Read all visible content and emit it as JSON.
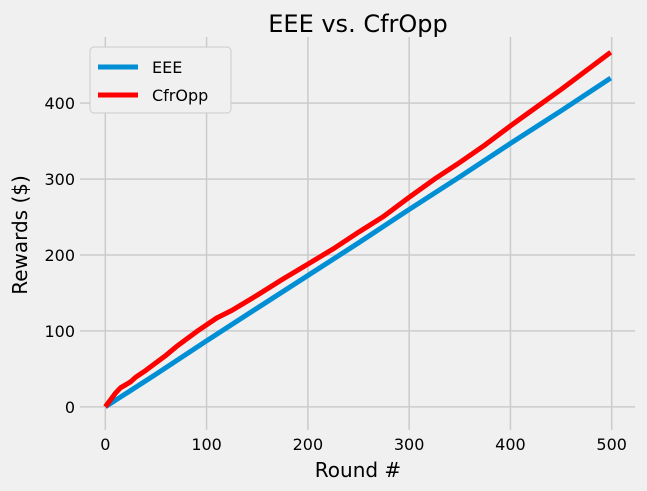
{
  "chart_data": {
    "type": "line",
    "title": "EEE vs. CfrOpp",
    "xlabel": "Round #",
    "ylabel": "Rewards ($)",
    "xlim": [
      -25,
      523
    ],
    "ylim": [
      -20,
      474
    ],
    "xticks": [
      0,
      100,
      200,
      300,
      400,
      500
    ],
    "yticks": [
      0,
      100,
      200,
      300,
      400
    ],
    "grid": true,
    "legend_position": "top-left",
    "series": [
      {
        "name": "EEE",
        "color": "#008fd5",
        "x": [
          0,
          50,
          100,
          150,
          200,
          250,
          300,
          350,
          400,
          450,
          499
        ],
        "y": [
          0,
          43,
          87,
          130,
          173,
          216,
          260,
          303,
          347,
          390,
          433
        ]
      },
      {
        "name": "CfrOpp",
        "color": "#ff0000",
        "x": [
          0,
          5,
          10,
          15,
          20,
          25,
          30,
          40,
          50,
          60,
          70,
          80,
          90,
          100,
          110,
          125,
          150,
          175,
          200,
          225,
          250,
          275,
          300,
          325,
          350,
          375,
          400,
          425,
          450,
          475,
          499
        ],
        "y": [
          0,
          9,
          18,
          25,
          29,
          33,
          39,
          48,
          58,
          68,
          79,
          89,
          99,
          108,
          117,
          127,
          147,
          168,
          188,
          208,
          230,
          251,
          276,
          300,
          322,
          345,
          370,
          394,
          418,
          443,
          467
        ]
      }
    ]
  }
}
